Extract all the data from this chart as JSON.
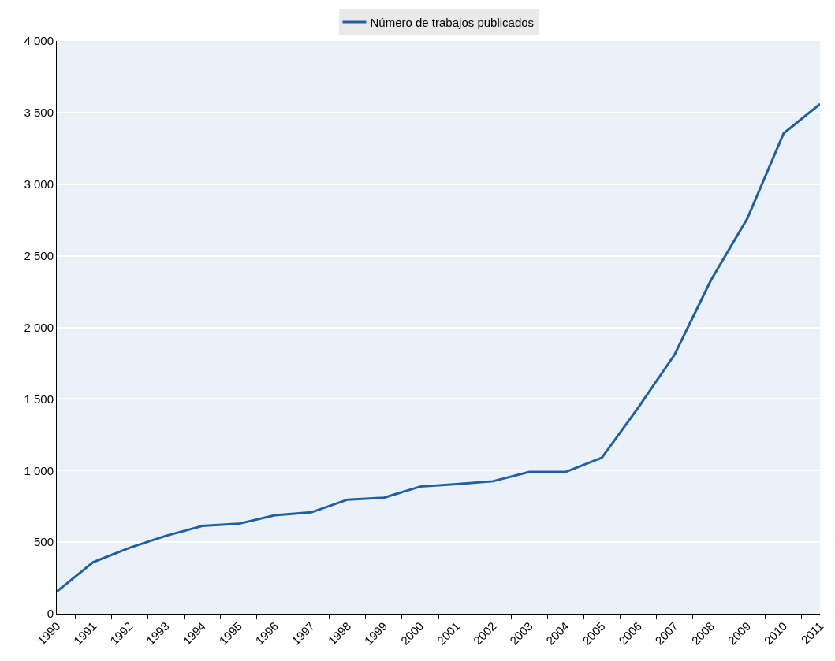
{
  "chart_data": {
    "type": "line",
    "categories": [
      "1990",
      "1991",
      "1992",
      "1993",
      "1994",
      "1995",
      "1996",
      "1997",
      "1998",
      "1999",
      "2000",
      "2001",
      "2002",
      "2003",
      "2004",
      "2005",
      "2006",
      "2007",
      "2008",
      "2009",
      "2010",
      "2011"
    ],
    "series": [
      {
        "name": "Número de trabajos publicados",
        "color": "#1f5fa6",
        "values": [
          155,
          360,
          460,
          544,
          613,
          628,
          688,
          708,
          797,
          810,
          888,
          905,
          925,
          990,
          990,
          1090,
          1440,
          1810,
          2330,
          2760,
          3355,
          3560
        ]
      }
    ],
    "ylim": [
      0,
      4000
    ],
    "yticks": [
      0,
      {
        "value": 500,
        "label": "500"
      },
      {
        "value": 1000,
        "label": "1 000"
      },
      {
        "value": 1500,
        "label": "1 500"
      },
      {
        "value": 2000,
        "label": "2 000"
      },
      {
        "value": 2500,
        "label": "2 500"
      },
      {
        "value": 3000,
        "label": "3 000"
      },
      {
        "value": 3500,
        "label": "3 500"
      },
      {
        "value": 4000,
        "label": "4 000"
      }
    ],
    "grid": "y",
    "legend": "top",
    "marker": "none",
    "line_style": "solid"
  }
}
